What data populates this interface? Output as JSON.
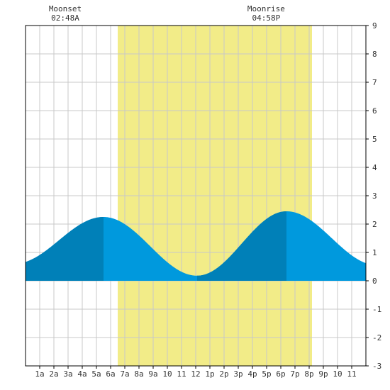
{
  "chart_data": {
    "type": "area",
    "title": "",
    "xlabel": "",
    "ylabel": "",
    "xlim": [
      0,
      24
    ],
    "ylim": [
      -3,
      9
    ],
    "grid": true,
    "x_tick_labels": [
      "1a",
      "2a",
      "3a",
      "4a",
      "5a",
      "6a",
      "7a",
      "8a",
      "9a",
      "10",
      "11",
      "12",
      "1p",
      "2p",
      "3p",
      "4p",
      "5p",
      "6p",
      "7p",
      "8p",
      "9p",
      "10",
      "11"
    ],
    "y_ticks": [
      -3,
      -2,
      -1,
      0,
      1,
      2,
      3,
      4,
      5,
      6,
      7,
      8,
      9
    ],
    "daylight": {
      "start_hour": 6.5,
      "end_hour": 20.2,
      "color": "#f2ec88"
    },
    "colors": {
      "tide_rising": "#0080b8",
      "tide_falling": "#0099dd",
      "grid": "#c8c8c8",
      "frame": "#000000"
    },
    "tide": {
      "low1": {
        "x": -0.8,
        "y": 0.6
      },
      "high1": {
        "x": 5.5,
        "y": 2.25
      },
      "low2": {
        "x": 12.1,
        "y": 0.18
      },
      "high2": {
        "x": 18.4,
        "y": 2.45
      },
      "low3": {
        "x": 24.8,
        "y": 0.55
      }
    },
    "annotations": [
      {
        "label": "Moonset",
        "time": "02:48A",
        "hour": 2.8
      },
      {
        "label": "Moonrise",
        "time": "04:58P",
        "hour": 16.97
      }
    ]
  }
}
